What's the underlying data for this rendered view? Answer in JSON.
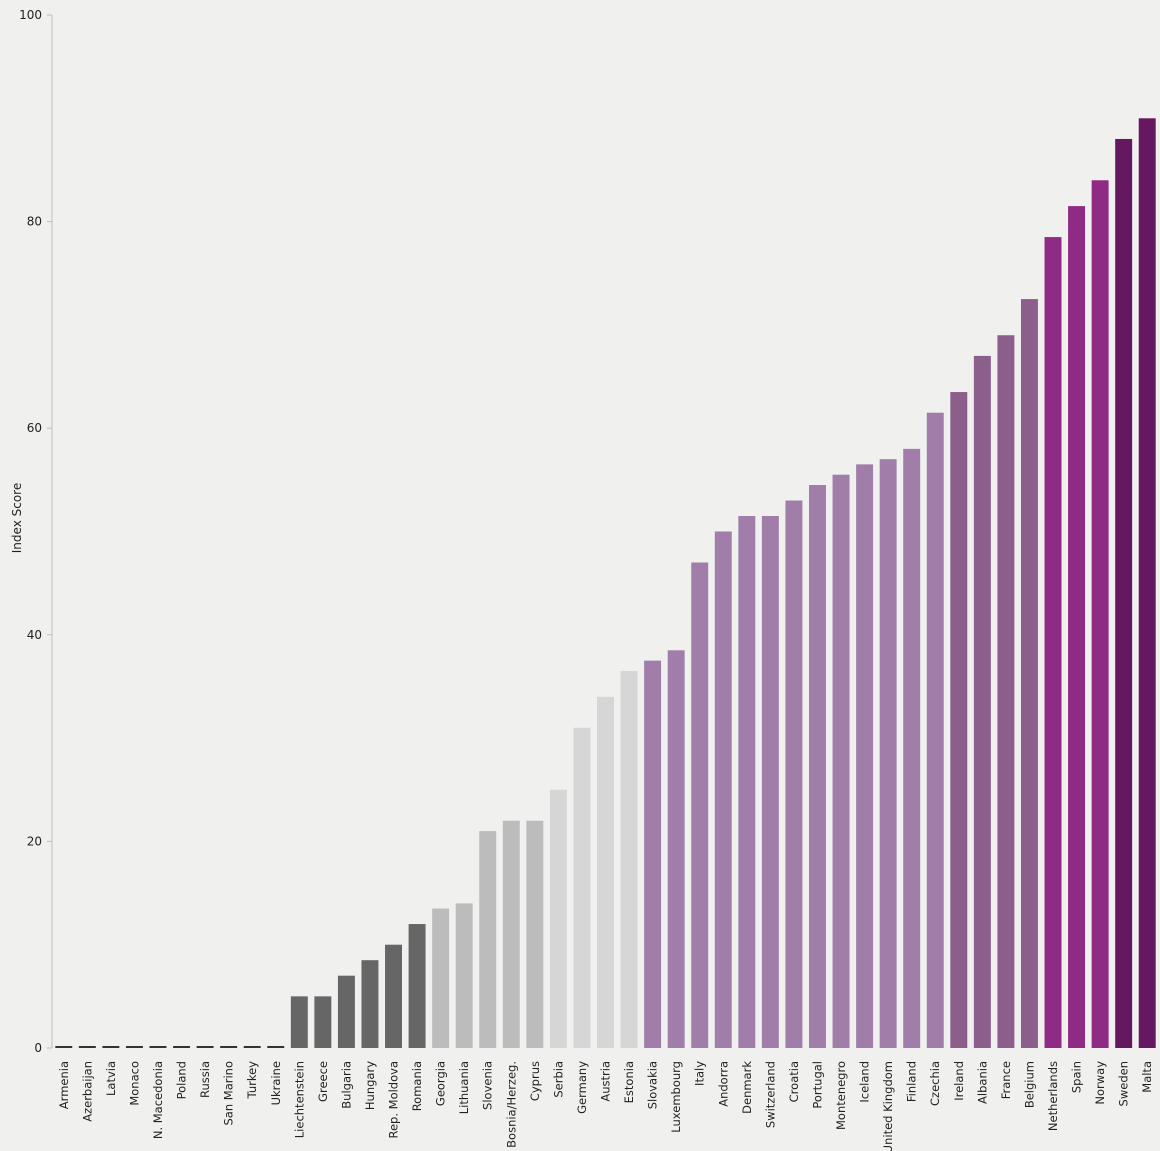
{
  "chart_data": {
    "type": "bar",
    "title": "",
    "xlabel": "",
    "ylabel": "Index Score",
    "ylim": [
      0,
      100
    ],
    "yticks": [
      0,
      20,
      40,
      60,
      80,
      100
    ],
    "grid": false,
    "categories": [
      "Armenia",
      "Azerbaijan",
      "Latvia",
      "Monaco",
      "N. Macedonia",
      "Poland",
      "Russia",
      "San Marino",
      "Turkey",
      "Ukraine",
      "Liechtenstein",
      "Greece",
      "Bulgaria",
      "Hungary",
      "Rep. Moldova",
      "Romania",
      "Georgia",
      "Lithuania",
      "Slovenia",
      "Bosnia/Herzeg.",
      "Cyprus",
      "Serbia",
      "Germany",
      "Austria",
      "Estonia",
      "Slovakia",
      "Luxembourg",
      "Italy",
      "Andorra",
      "Denmark",
      "Switzerland",
      "Croatia",
      "Portugal",
      "Montenegro",
      "Iceland",
      "United Kingdom",
      "Finland",
      "Czechia",
      "Ireland",
      "Albania",
      "France",
      "Belgium",
      "Netherlands",
      "Spain",
      "Norway",
      "Sweden",
      "Malta"
    ],
    "values": [
      0,
      0,
      0,
      0,
      0,
      0,
      0,
      0,
      0,
      0,
      5,
      5,
      7,
      8.5,
      10,
      12,
      13.5,
      14,
      21,
      22,
      22,
      25,
      31,
      34,
      36.5,
      37.5,
      38.5,
      47,
      50,
      51.5,
      51.5,
      53,
      54.5,
      55.5,
      56.5,
      57,
      58,
      61.5,
      63.5,
      67,
      69,
      72.5,
      78.5,
      81.5,
      84,
      88,
      90
    ],
    "bar_colors": [
      "#333333",
      "#333333",
      "#333333",
      "#333333",
      "#333333",
      "#333333",
      "#333333",
      "#333333",
      "#333333",
      "#333333",
      "#666666",
      "#666666",
      "#666666",
      "#666666",
      "#666666",
      "#666666",
      "#bcbcbc",
      "#bcbcbc",
      "#bcbcbc",
      "#bcbcbc",
      "#bcbcbc",
      "#d6d6d6",
      "#d6d6d6",
      "#d6d6d6",
      "#d6d6d6",
      "#a17daa",
      "#a17daa",
      "#a17daa",
      "#a17daa",
      "#a17daa",
      "#a17daa",
      "#a17daa",
      "#a17daa",
      "#a17daa",
      "#a17daa",
      "#a17daa",
      "#a17daa",
      "#a17daa",
      "#8c5e8c",
      "#8c5e8c",
      "#8c5e8c",
      "#8c5e8c",
      "#8f2a85",
      "#8f2a85",
      "#8f2a85",
      "#651760",
      "#651760"
    ]
  }
}
